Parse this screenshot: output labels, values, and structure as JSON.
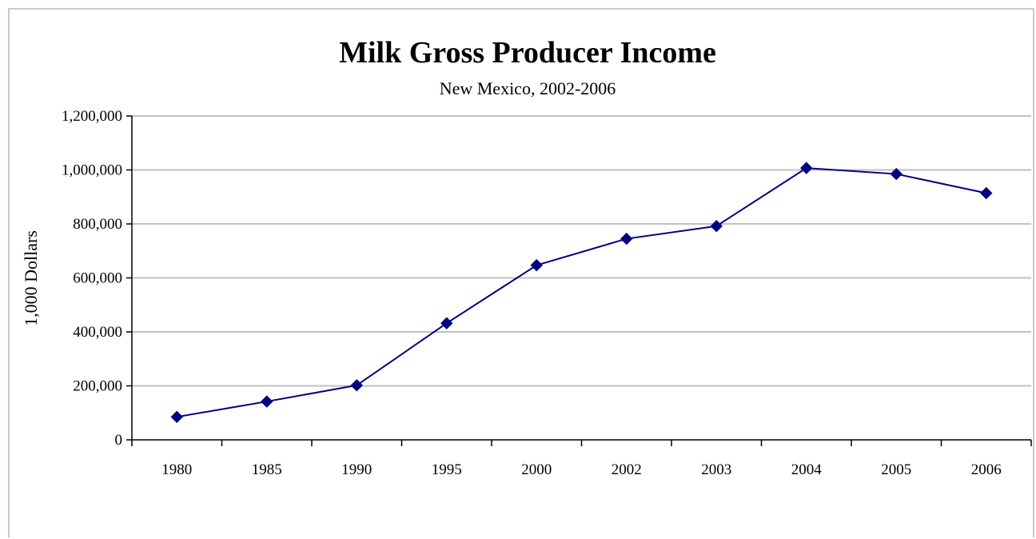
{
  "chart_data": {
    "type": "line",
    "title": "Milk Gross Producer Income",
    "subtitle": "New Mexico, 2002-2006",
    "xlabel": "",
    "ylabel": "1,000 Dollars",
    "categories": [
      "1980",
      "1985",
      "1990",
      "1995",
      "2000",
      "2002",
      "2003",
      "2004",
      "2005",
      "2006"
    ],
    "series": [
      {
        "values": [
          85000,
          142000,
          202000,
          432000,
          647000,
          745000,
          792000,
          1007000,
          985000,
          914000
        ],
        "color": "#000080",
        "marker": "diamond"
      }
    ],
    "ylim": [
      0,
      1200000
    ],
    "yticks": [
      "0",
      "200,000",
      "400,000",
      "600,000",
      "800,000",
      "1,000,000",
      "1,200,000"
    ],
    "grid": true,
    "gridline_color": "#c0c0c0",
    "legend": "none"
  }
}
